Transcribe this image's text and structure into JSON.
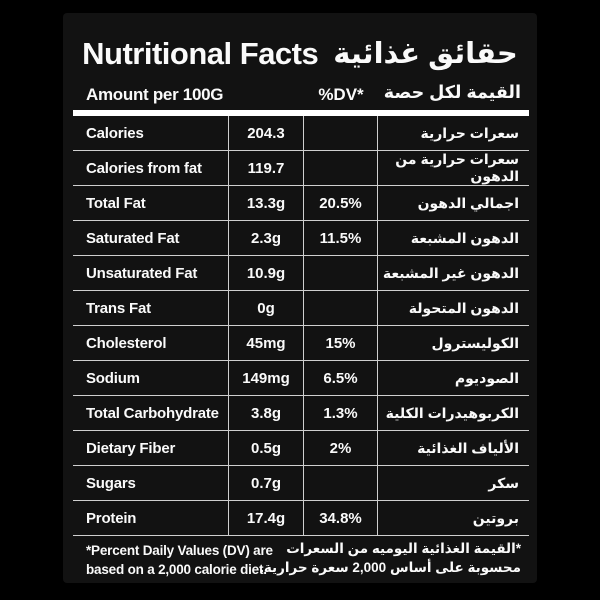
{
  "title": {
    "en": "Nutritional Facts",
    "ar": "حقائق غذائية"
  },
  "header": {
    "amount_en": "Amount per 100G",
    "dv": "%DV*",
    "amount_ar": "القيمة لكل حصة"
  },
  "rows": [
    {
      "en": "Calories",
      "amount": "204.3",
      "dv": "",
      "ar": "سعرات حرارية"
    },
    {
      "en": "Calories from fat",
      "amount": "119.7",
      "dv": "",
      "ar": "سعرات حرارية من الدهون"
    },
    {
      "en": "Total Fat",
      "amount": "13.3g",
      "dv": "20.5%",
      "ar": "اجمالي الدهون"
    },
    {
      "en": "Saturated Fat",
      "amount": "2.3g",
      "dv": "11.5%",
      "ar": "الدهون المشبعة"
    },
    {
      "en": "Unsaturated Fat",
      "amount": "10.9g",
      "dv": "",
      "ar": "الدهون غير المشبعة"
    },
    {
      "en": "Trans Fat",
      "amount": "0g",
      "dv": "",
      "ar": "الدهون المتحولة"
    },
    {
      "en": "Cholesterol",
      "amount": "45mg",
      "dv": "15%",
      "ar": "الكوليسترول"
    },
    {
      "en": "Sodium",
      "amount": "149mg",
      "dv": "6.5%",
      "ar": "الصوديوم"
    },
    {
      "en": "Total Carbohydrate",
      "amount": "3.8g",
      "dv": "1.3%",
      "ar": "الكربوهيدرات الكلية"
    },
    {
      "en": "Dietary Fiber",
      "amount": "0.5g",
      "dv": "2%",
      "ar": "الألياف الغذائية"
    },
    {
      "en": "Sugars",
      "amount": "0.7g",
      "dv": "",
      "ar": "سكر"
    },
    {
      "en": "Protein",
      "amount": "17.4g",
      "dv": "34.8%",
      "ar": "بروتين"
    }
  ],
  "footnote": {
    "en_line1": "*Percent Daily Values (DV) are",
    "en_line2": "based on a 2,000 calorie diet.",
    "ar_line1": "*القيمة الغذائية اليوميه من السعرات",
    "ar_line2": "محسوبة على أساس 2,000 سعرة حرارية."
  },
  "colors": {
    "background": "#000000",
    "card": "#121212",
    "text": "#fafafa",
    "divider": "#cfcfcf",
    "thick_bar": "#ffffff"
  }
}
